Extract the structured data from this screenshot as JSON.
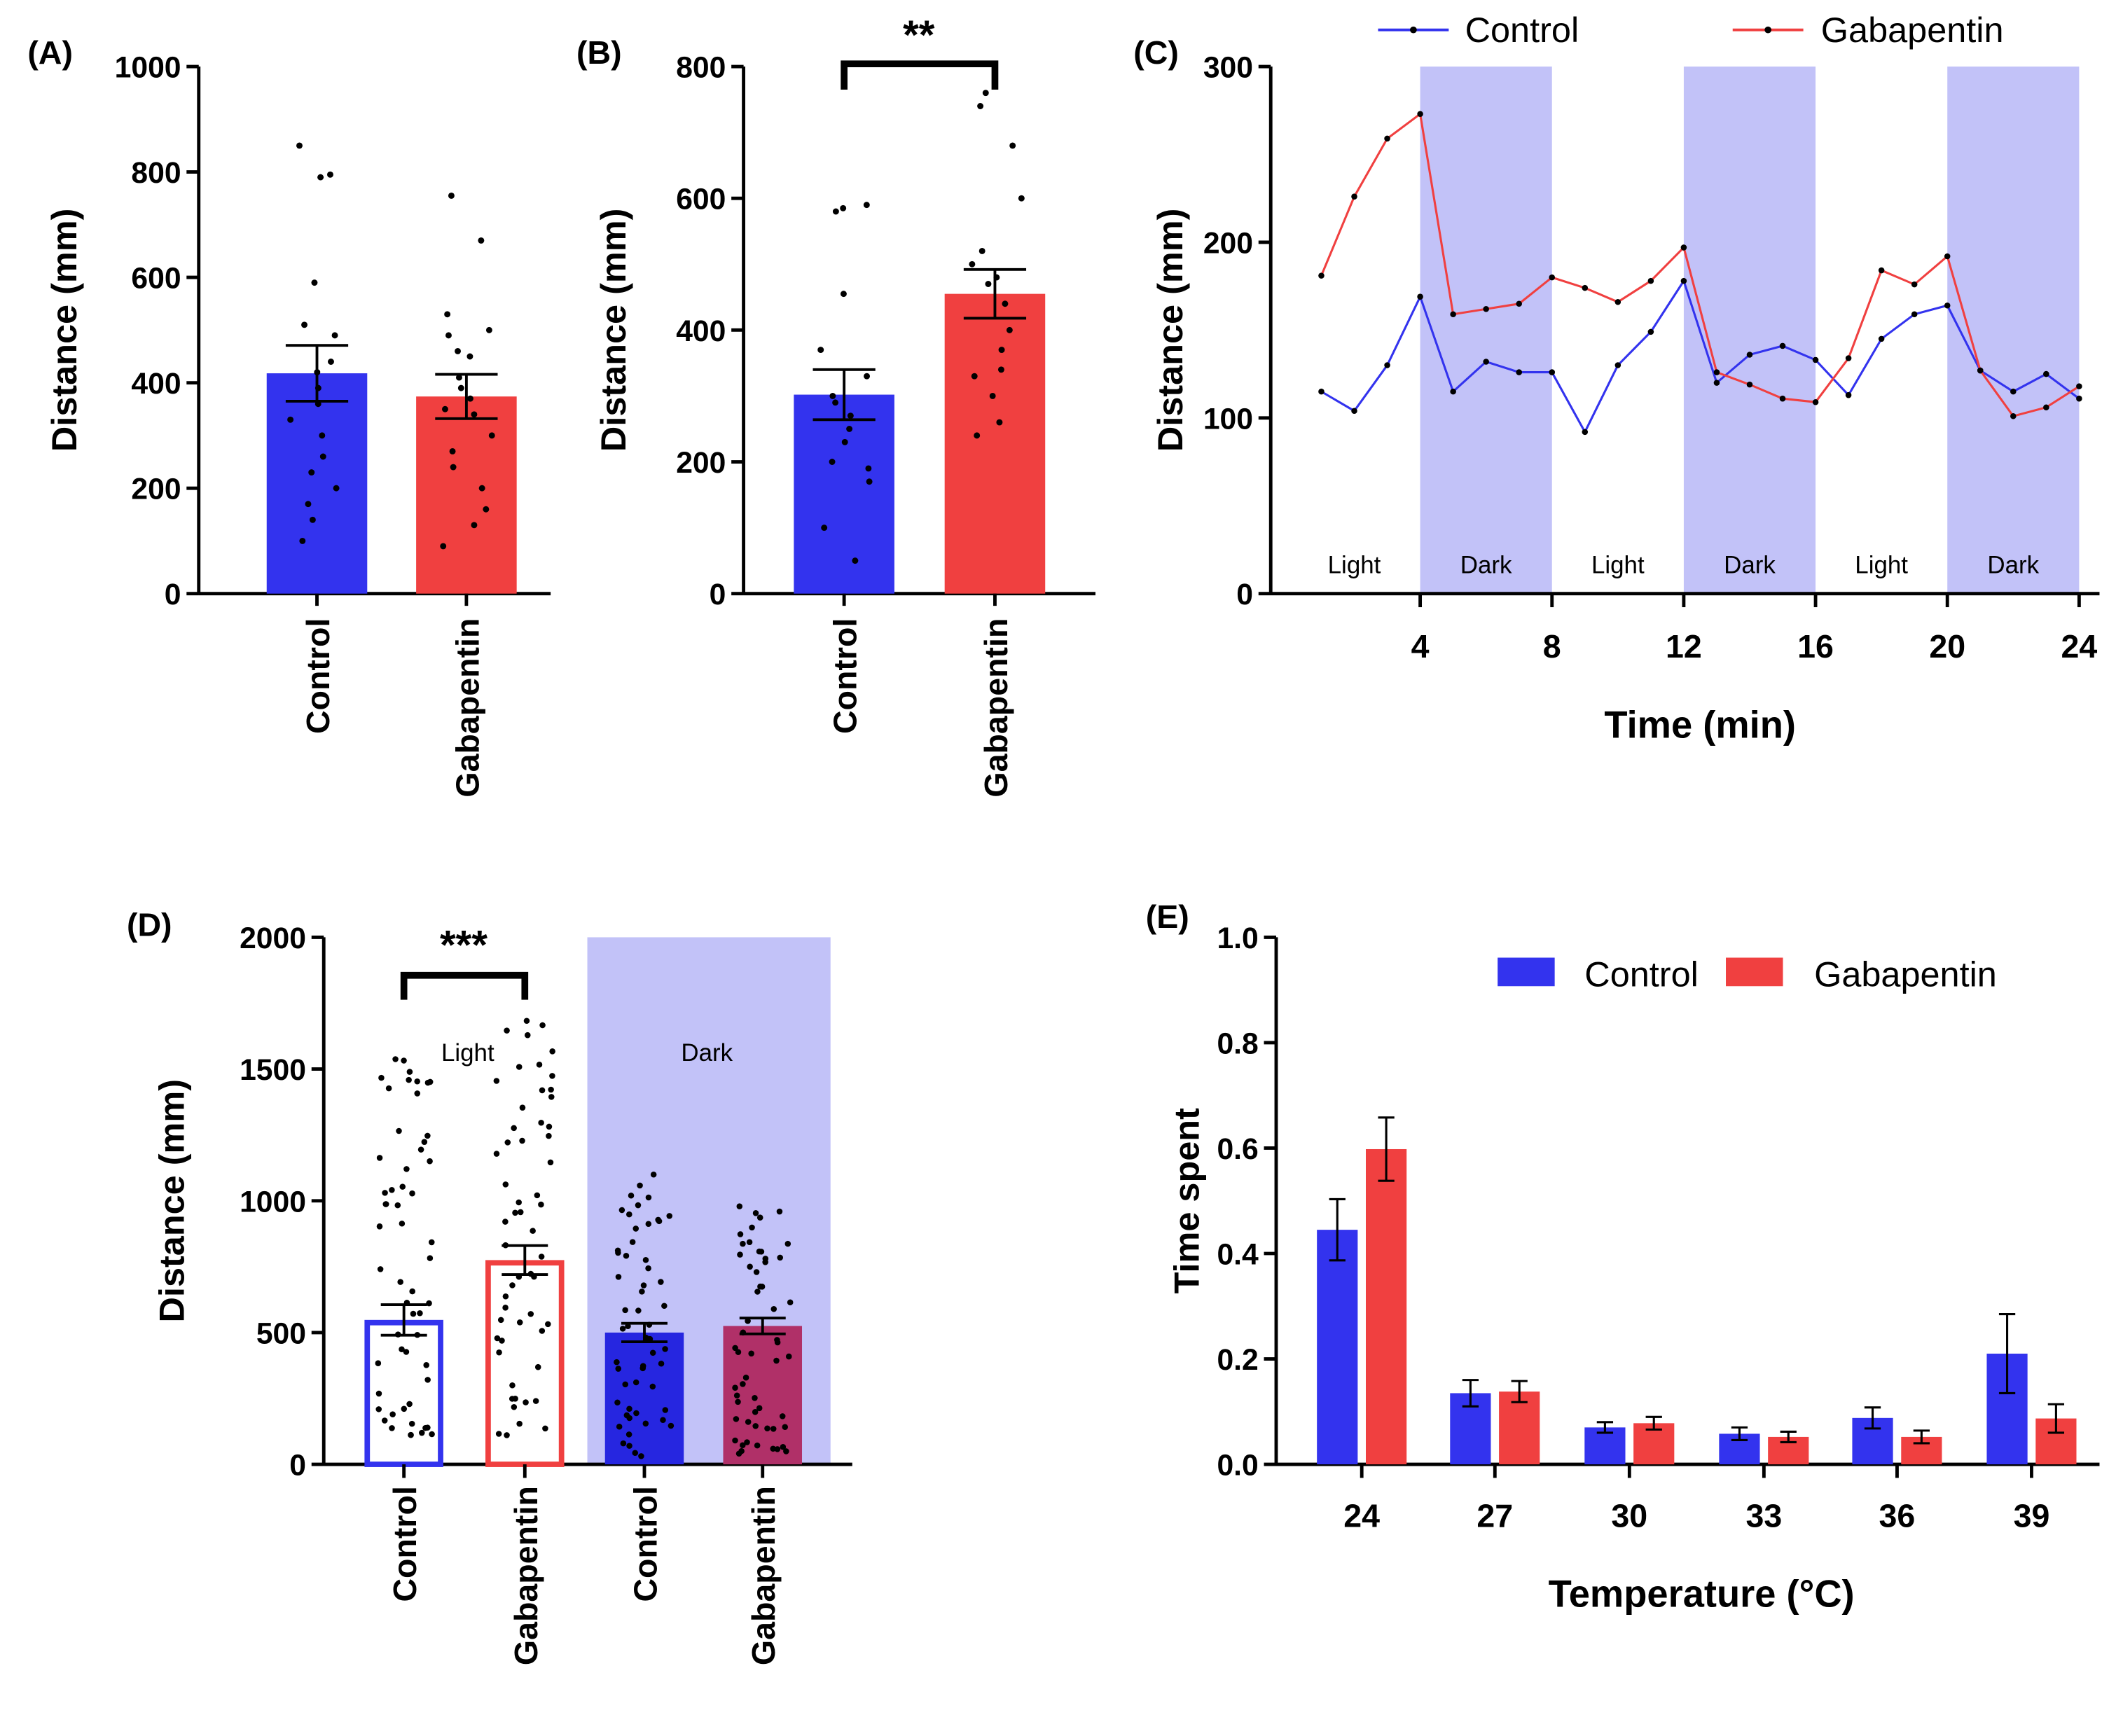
{
  "colors": {
    "control": "#3333ee",
    "gabapentin": "#f04040",
    "dark_band": "#c2c2f8",
    "axis": "#000000",
    "control_dark": "#2626e0",
    "gabapentin_dark": "#b03068"
  },
  "chart_data": [
    {
      "panel": "(A)",
      "type": "bar",
      "ylabel": "Distance (mm)",
      "ylim": [
        0,
        1000
      ],
      "yticks": [
        "0",
        "200",
        "400",
        "600",
        "800",
        "1000"
      ],
      "categories": [
        "Control",
        "Gabapentin"
      ],
      "values": [
        418,
        374
      ],
      "sem": [
        53,
        42
      ],
      "points": [
        [
          850,
          795,
          790,
          590,
          510,
          490,
          440,
          420,
          390,
          360,
          330,
          300,
          260,
          230,
          200,
          170,
          140,
          100
        ],
        [
          755,
          670,
          530,
          500,
          490,
          460,
          450,
          410,
          390,
          370,
          350,
          340,
          300,
          270,
          240,
          200,
          160,
          130,
          90
        ]
      ]
    },
    {
      "panel": "(B)",
      "type": "bar",
      "ylabel": "Distance (mm)",
      "ylim": [
        0,
        800
      ],
      "yticks": [
        "0",
        "200",
        "400",
        "600",
        "800"
      ],
      "categories": [
        "Control",
        "Gabapentin"
      ],
      "values": [
        302,
        455
      ],
      "sem": [
        38,
        37
      ],
      "significance": "**",
      "points": [
        [
          590,
          585,
          580,
          455,
          370,
          330,
          300,
          290,
          270,
          250,
          230,
          200,
          190,
          170,
          100,
          50
        ],
        [
          760,
          740,
          680,
          600,
          520,
          500,
          480,
          470,
          440,
          400,
          370,
          340,
          330,
          300,
          260,
          240
        ]
      ]
    },
    {
      "panel": "(C)",
      "type": "line",
      "xlabel": "Time (min)",
      "ylabel": "Distance (mm)",
      "xlim": [
        0,
        24
      ],
      "ylim": [
        0,
        300
      ],
      "xticks": [
        "4",
        "8",
        "12",
        "16",
        "20",
        "24"
      ],
      "yticks": [
        "0",
        "100",
        "200",
        "300"
      ],
      "x": [
        1,
        2,
        3,
        4,
        5,
        6,
        7,
        8,
        9,
        10,
        11,
        12,
        13,
        14,
        15,
        16,
        17,
        18,
        19,
        20,
        21,
        22,
        23,
        24
      ],
      "series": [
        {
          "name": "Control",
          "values": [
            115,
            104,
            130,
            169,
            115,
            132,
            126,
            126,
            92,
            130,
            149,
            178,
            120,
            136,
            141,
            133,
            113,
            145,
            159,
            164,
            127,
            115,
            125,
            111
          ]
        },
        {
          "name": "Gabapentin",
          "values": [
            181,
            226,
            259,
            273,
            159,
            162,
            165,
            180,
            174,
            166,
            178,
            197,
            126,
            119,
            111,
            109,
            134,
            184,
            176,
            192,
            127,
            101,
            106,
            118
          ]
        }
      ],
      "phases": [
        "Light",
        "Dark",
        "Light",
        "Dark",
        "Light",
        "Dark"
      ]
    },
    {
      "panel": "(D)",
      "type": "bar",
      "ylabel": "Distance (mm)",
      "ylim": [
        0,
        2000
      ],
      "yticks": [
        "0",
        "500",
        "1000",
        "1500",
        "2000"
      ],
      "categories": [
        "Control",
        "Gabapentin",
        "Control",
        "Gabapentin"
      ],
      "values": [
        548,
        775,
        500,
        525
      ],
      "sem": [
        58,
        55,
        35,
        30
      ],
      "significance": "***",
      "groups": [
        "Light",
        "Dark"
      ]
    },
    {
      "panel": "(E)",
      "type": "bar",
      "xlabel": "Temperature (°C)",
      "ylabel": "Time spent",
      "ylim": [
        0,
        1.0
      ],
      "yticks": [
        "0.0",
        "0.2",
        "0.4",
        "0.6",
        "0.8",
        "1.0"
      ],
      "categories": [
        "24",
        "27",
        "30",
        "33",
        "36",
        "39"
      ],
      "series": [
        {
          "name": "Control",
          "values": [
            0.445,
            0.135,
            0.07,
            0.058,
            0.088,
            0.21
          ],
          "err": [
            0.058,
            0.025,
            0.01,
            0.012,
            0.02,
            0.075
          ]
        },
        {
          "name": "Gabapentin",
          "values": [
            0.598,
            0.138,
            0.078,
            0.052,
            0.052,
            0.087
          ],
          "err": [
            0.06,
            0.02,
            0.012,
            0.01,
            0.012,
            0.027
          ]
        }
      ]
    }
  ]
}
